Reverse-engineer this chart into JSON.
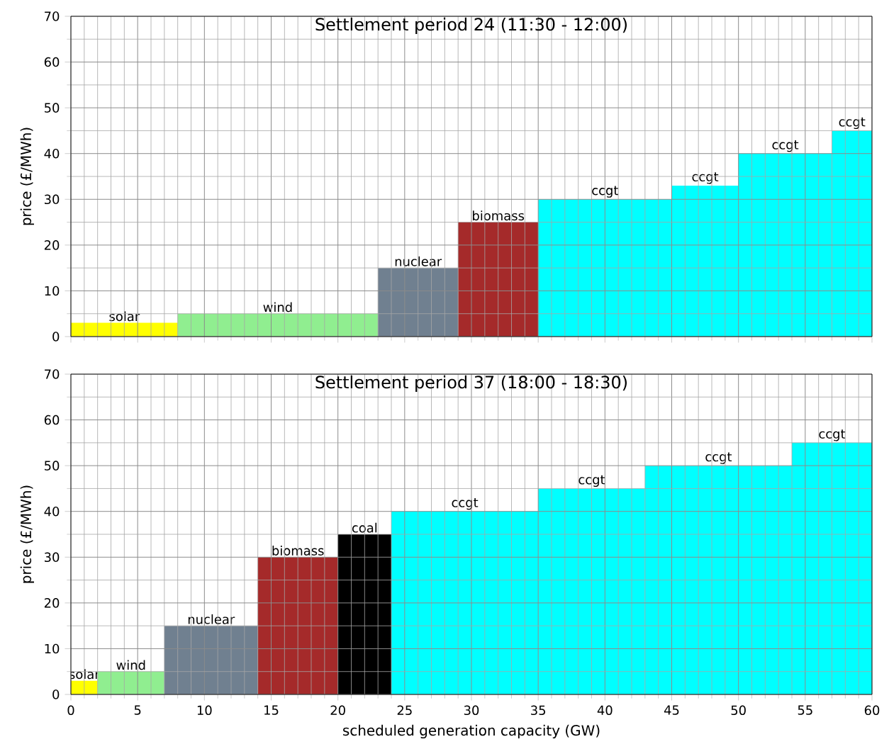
{
  "chart_data": [
    {
      "type": "area",
      "title": "Settlement period 24 (11:30 - 12:00)",
      "ylabel": "price (£/MWh)",
      "xlim": [
        0,
        60
      ],
      "xticks": [
        0,
        5,
        10,
        15,
        20,
        25,
        30,
        35,
        40,
        45,
        50,
        55,
        60
      ],
      "ylim": [
        0,
        70
      ],
      "yticks": [
        0,
        10,
        20,
        30,
        40,
        50,
        60,
        70
      ],
      "grid": true,
      "tick_labels": "y",
      "series": [
        {
          "name": "solar",
          "color": "#ffff00",
          "x": [
            0,
            8
          ],
          "values": [
            3,
            3
          ]
        },
        {
          "name": "wind",
          "color": "#90ee90",
          "x": [
            8,
            23
          ],
          "values": [
            5,
            5
          ]
        },
        {
          "name": "nuclear",
          "color": "#708090",
          "x": [
            23,
            29
          ],
          "values": [
            15,
            15
          ]
        },
        {
          "name": "biomass",
          "color": "#a52a2a",
          "x": [
            29,
            35
          ],
          "values": [
            25,
            25
          ]
        },
        {
          "name": "ccgt",
          "color": "#00ffff",
          "x": [
            35,
            45
          ],
          "values": [
            30,
            30
          ]
        },
        {
          "name": "ccgt",
          "color": "#00ffff",
          "x": [
            45,
            50
          ],
          "values": [
            33,
            33
          ]
        },
        {
          "name": "ccgt",
          "color": "#00ffff",
          "x": [
            50,
            57
          ],
          "values": [
            40,
            40
          ]
        },
        {
          "name": "ccgt",
          "color": "#00ffff",
          "x": [
            57,
            60
          ],
          "values": [
            45,
            45
          ]
        }
      ]
    },
    {
      "type": "area",
      "title": "Settlement period 37 (18:00 - 18:30)",
      "ylabel": "price (£/MWh)",
      "xlabel": "scheduled generation capacity (GW)",
      "xlim": [
        0,
        60
      ],
      "xticks": [
        0,
        5,
        10,
        15,
        20,
        25,
        30,
        35,
        40,
        45,
        50,
        55,
        60
      ],
      "ylim": [
        0,
        70
      ],
      "yticks": [
        0,
        10,
        20,
        30,
        40,
        50,
        60,
        70
      ],
      "grid": true,
      "series": [
        {
          "name": "solar",
          "color": "#ffff00",
          "x": [
            0,
            2
          ],
          "values": [
            3,
            3
          ]
        },
        {
          "name": "wind",
          "color": "#90ee90",
          "x": [
            2,
            7
          ],
          "values": [
            5,
            5
          ]
        },
        {
          "name": "nuclear",
          "color": "#708090",
          "x": [
            7,
            14
          ],
          "values": [
            15,
            15
          ]
        },
        {
          "name": "biomass",
          "color": "#a52a2a",
          "x": [
            14,
            20
          ],
          "values": [
            30,
            30
          ]
        },
        {
          "name": "coal",
          "color": "#000000",
          "x": [
            20,
            24
          ],
          "values": [
            35,
            35
          ]
        },
        {
          "name": "ccgt",
          "color": "#00ffff",
          "x": [
            24,
            35
          ],
          "values": [
            40,
            40
          ]
        },
        {
          "name": "ccgt",
          "color": "#00ffff",
          "x": [
            35,
            43
          ],
          "values": [
            45,
            45
          ]
        },
        {
          "name": "ccgt",
          "color": "#00ffff",
          "x": [
            43,
            54
          ],
          "values": [
            50,
            50
          ]
        },
        {
          "name": "ccgt",
          "color": "#00ffff",
          "x": [
            54,
            60
          ],
          "values": [
            55,
            55
          ]
        }
      ]
    }
  ]
}
